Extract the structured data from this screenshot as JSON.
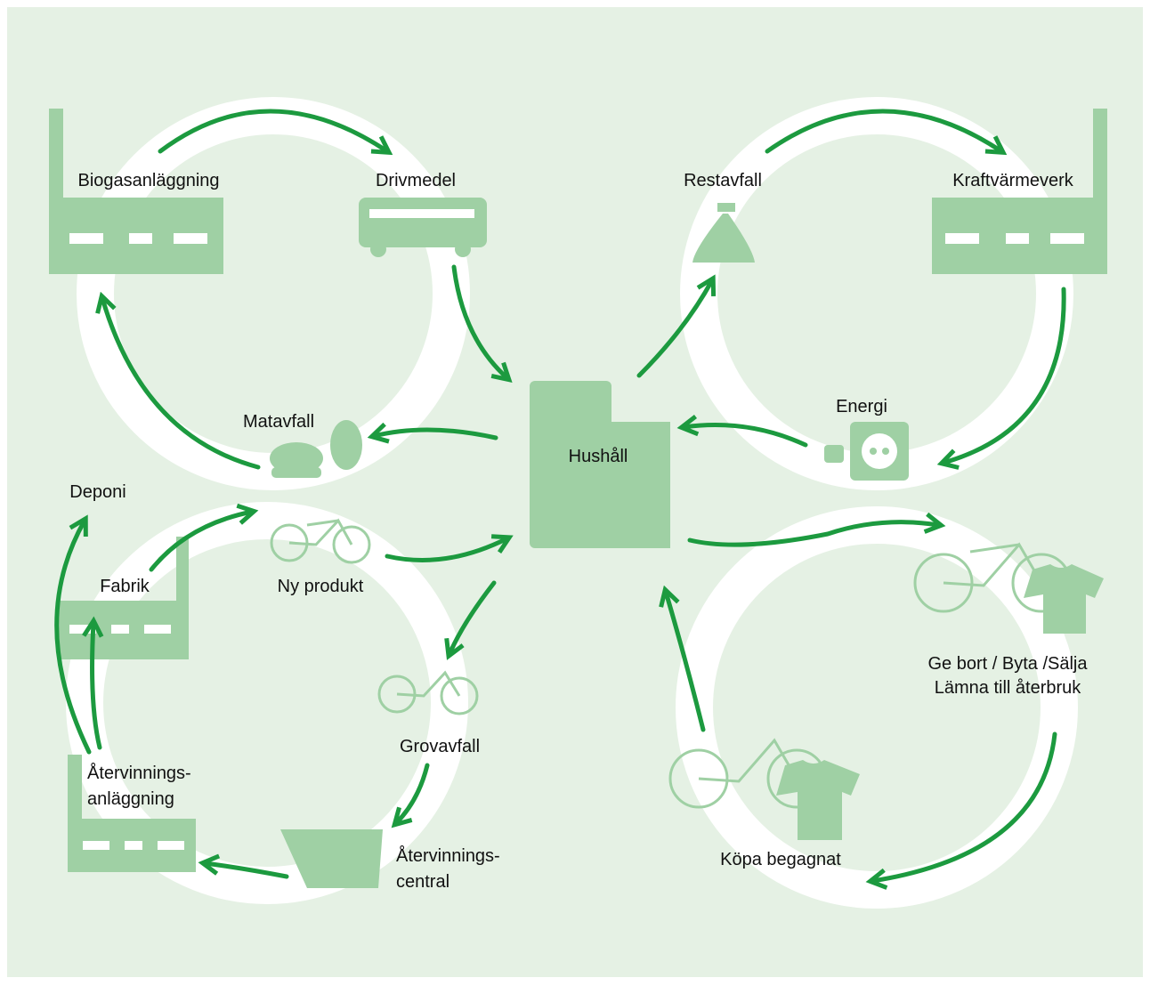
{
  "nodes": [
    {
      "lines": [
        "Biogasanläggning"
      ]
    },
    {
      "lines": [
        "Drivmedel"
      ]
    },
    {
      "lines": [
        "Restavfall"
      ]
    },
    {
      "lines": [
        "Kraftvärmeverk"
      ]
    },
    {
      "lines": [
        "Matavfall"
      ]
    },
    {
      "lines": [
        "Energi"
      ]
    },
    {
      "lines": [
        "Hushåll"
      ]
    },
    {
      "lines": [
        "Deponi"
      ]
    },
    {
      "lines": [
        "Fabrik"
      ]
    },
    {
      "lines": [
        "Ny produkt"
      ]
    },
    {
      "lines": [
        "Grovavfall"
      ]
    },
    {
      "lines": [
        "Återvinnings-",
        "anläggning"
      ]
    },
    {
      "lines": [
        "Återvinnings-",
        "central"
      ]
    },
    {
      "lines": [
        "Ge bort / Byta /Sälja",
        "Lämna till återbruk"
      ]
    },
    {
      "lines": [
        "Köpa begagnat"
      ]
    }
  ]
}
